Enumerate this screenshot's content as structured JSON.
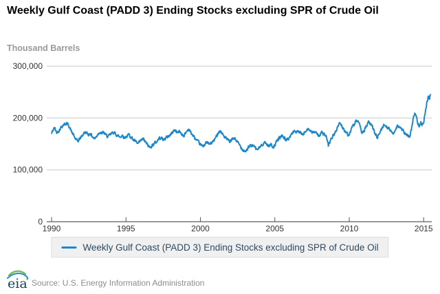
{
  "header": {
    "title": "Weekly Gulf Coast (PADD 3) Ending Stocks excluding SPR of Crude Oil",
    "units_label": "Thousand Barrels"
  },
  "legend": {
    "label": "Weekly Gulf Coast (PADD 3) Ending Stocks excluding SPR of Crude Oil"
  },
  "footer": {
    "logo_text": "eia",
    "source": "Source: U.S. Energy Information Administration"
  },
  "colors": {
    "line": "#1c87c9",
    "grid": "#dadada",
    "axis": "#999999",
    "tick": "#555555",
    "tick_label": "#333333",
    "title": "#000000",
    "units_label": "#999999",
    "legend_text": "#2a4a62",
    "legend_bg": "#f0f0f0",
    "legend_border": "#dddddd",
    "source_text": "#8c8c8c",
    "logo_green": "#7ab648",
    "logo_blue": "#2d95c9",
    "logo_navy": "#17415a"
  },
  "chart_data": {
    "type": "line",
    "title": "Weekly Gulf Coast (PADD 3) Ending Stocks excluding SPR of Crude Oil",
    "xlabel": "",
    "ylabel": "Thousand Barrels",
    "x_range": [
      1990,
      2015.6
    ],
    "y_range": [
      0,
      320000
    ],
    "x_ticks": [
      1990,
      1995,
      2000,
      2005,
      2010,
      2015
    ],
    "y_ticks": [
      0,
      100000,
      200000,
      300000
    ],
    "grid": "horizontal",
    "legend_position": "bottom",
    "frequency": "weekly",
    "weekly_noise": {
      "amplitude": 5000,
      "seed": 42,
      "persistence": 0.45
    },
    "series": [
      {
        "name": "Weekly Gulf Coast (PADD 3) Ending Stocks excluding SPR of Crude Oil",
        "points": [
          [
            1990.0,
            170000
          ],
          [
            1990.1,
            177000
          ],
          [
            1990.2,
            181000
          ],
          [
            1990.35,
            172000
          ],
          [
            1990.5,
            176000
          ],
          [
            1990.65,
            183000
          ],
          [
            1990.8,
            187000
          ],
          [
            1991.0,
            190000
          ],
          [
            1991.15,
            186000
          ],
          [
            1991.3,
            176000
          ],
          [
            1991.45,
            168000
          ],
          [
            1991.6,
            160000
          ],
          [
            1991.75,
            155000
          ],
          [
            1991.9,
            160000
          ],
          [
            1992.0,
            164000
          ],
          [
            1992.15,
            170000
          ],
          [
            1992.3,
            173000
          ],
          [
            1992.45,
            168000
          ],
          [
            1992.6,
            170000
          ],
          [
            1992.75,
            164000
          ],
          [
            1992.9,
            160000
          ],
          [
            1993.05,
            166000
          ],
          [
            1993.2,
            173000
          ],
          [
            1993.35,
            170000
          ],
          [
            1993.5,
            172000
          ],
          [
            1993.65,
            167000
          ],
          [
            1993.8,
            164000
          ],
          [
            1994.0,
            169000
          ],
          [
            1994.15,
            173000
          ],
          [
            1994.3,
            169000
          ],
          [
            1994.45,
            166000
          ],
          [
            1994.6,
            163000
          ],
          [
            1994.75,
            167000
          ],
          [
            1994.9,
            162000
          ],
          [
            1995.05,
            165000
          ],
          [
            1995.2,
            168000
          ],
          [
            1995.35,
            163000
          ],
          [
            1995.5,
            158000
          ],
          [
            1995.65,
            154000
          ],
          [
            1995.8,
            150000
          ],
          [
            1996.0,
            156000
          ],
          [
            1996.15,
            160000
          ],
          [
            1996.3,
            154000
          ],
          [
            1996.45,
            148000
          ],
          [
            1996.6,
            143000
          ],
          [
            1996.75,
            147000
          ],
          [
            1996.9,
            151000
          ],
          [
            1997.05,
            154000
          ],
          [
            1997.2,
            160000
          ],
          [
            1997.35,
            163000
          ],
          [
            1997.5,
            158000
          ],
          [
            1997.65,
            161000
          ],
          [
            1997.8,
            164000
          ],
          [
            1998.0,
            168000
          ],
          [
            1998.15,
            174000
          ],
          [
            1998.3,
            177000
          ],
          [
            1998.45,
            172000
          ],
          [
            1998.6,
            174000
          ],
          [
            1998.75,
            169000
          ],
          [
            1998.9,
            166000
          ],
          [
            1999.05,
            173000
          ],
          [
            1999.2,
            179000
          ],
          [
            1999.35,
            172000
          ],
          [
            1999.5,
            166000
          ],
          [
            1999.65,
            160000
          ],
          [
            1999.8,
            155000
          ],
          [
            2000.0,
            149000
          ],
          [
            2000.15,
            145000
          ],
          [
            2000.3,
            150000
          ],
          [
            2000.45,
            153000
          ],
          [
            2000.6,
            149000
          ],
          [
            2000.75,
            152000
          ],
          [
            2000.9,
            156000
          ],
          [
            2001.05,
            163000
          ],
          [
            2001.2,
            173000
          ],
          [
            2001.35,
            175000
          ],
          [
            2001.5,
            168000
          ],
          [
            2001.65,
            163000
          ],
          [
            2001.8,
            158000
          ],
          [
            2002.0,
            154000
          ],
          [
            2002.15,
            159000
          ],
          [
            2002.3,
            161000
          ],
          [
            2002.45,
            155000
          ],
          [
            2002.6,
            149000
          ],
          [
            2002.75,
            143000
          ],
          [
            2002.9,
            138000
          ],
          [
            2003.05,
            136000
          ],
          [
            2003.2,
            142000
          ],
          [
            2003.35,
            146000
          ],
          [
            2003.5,
            148000
          ],
          [
            2003.65,
            143000
          ],
          [
            2003.8,
            139000
          ],
          [
            2004.0,
            143000
          ],
          [
            2004.15,
            149000
          ],
          [
            2004.3,
            153000
          ],
          [
            2004.45,
            150000
          ],
          [
            2004.6,
            146000
          ],
          [
            2004.75,
            149000
          ],
          [
            2004.9,
            144000
          ],
          [
            2005.05,
            150000
          ],
          [
            2005.2,
            158000
          ],
          [
            2005.35,
            163000
          ],
          [
            2005.5,
            166000
          ],
          [
            2005.65,
            161000
          ],
          [
            2005.8,
            157000
          ],
          [
            2006.0,
            163000
          ],
          [
            2006.15,
            170000
          ],
          [
            2006.3,
            176000
          ],
          [
            2006.45,
            172000
          ],
          [
            2006.6,
            174000
          ],
          [
            2006.75,
            170000
          ],
          [
            2006.9,
            167000
          ],
          [
            2007.05,
            174000
          ],
          [
            2007.2,
            181000
          ],
          [
            2007.35,
            176000
          ],
          [
            2007.5,
            171000
          ],
          [
            2007.65,
            174000
          ],
          [
            2007.8,
            169000
          ],
          [
            2008.0,
            167000
          ],
          [
            2008.15,
            172000
          ],
          [
            2008.3,
            169000
          ],
          [
            2008.45,
            164000
          ],
          [
            2008.6,
            146000
          ],
          [
            2008.75,
            158000
          ],
          [
            2008.9,
            165000
          ],
          [
            2009.05,
            172000
          ],
          [
            2009.2,
            180000
          ],
          [
            2009.35,
            192000
          ],
          [
            2009.5,
            184000
          ],
          [
            2009.65,
            178000
          ],
          [
            2009.8,
            172000
          ],
          [
            2009.95,
            166000
          ],
          [
            2010.1,
            176000
          ],
          [
            2010.25,
            184000
          ],
          [
            2010.4,
            191000
          ],
          [
            2010.55,
            195000
          ],
          [
            2010.7,
            185000
          ],
          [
            2010.85,
            172000
          ],
          [
            2011.0,
            176000
          ],
          [
            2011.15,
            184000
          ],
          [
            2011.3,
            192000
          ],
          [
            2011.45,
            188000
          ],
          [
            2011.6,
            180000
          ],
          [
            2011.75,
            170000
          ],
          [
            2011.9,
            163000
          ],
          [
            2012.05,
            172000
          ],
          [
            2012.2,
            180000
          ],
          [
            2012.35,
            188000
          ],
          [
            2012.5,
            184000
          ],
          [
            2012.65,
            180000
          ],
          [
            2012.8,
            174000
          ],
          [
            2012.95,
            170000
          ],
          [
            2013.1,
            178000
          ],
          [
            2013.25,
            186000
          ],
          [
            2013.4,
            182000
          ],
          [
            2013.55,
            177000
          ],
          [
            2013.7,
            172000
          ],
          [
            2013.85,
            167000
          ],
          [
            2014.0,
            164000
          ],
          [
            2014.1,
            168000
          ],
          [
            2014.2,
            182000
          ],
          [
            2014.3,
            198000
          ],
          [
            2014.4,
            211000
          ],
          [
            2014.5,
            202000
          ],
          [
            2014.6,
            192000
          ],
          [
            2014.7,
            186000
          ],
          [
            2014.8,
            191000
          ],
          [
            2014.9,
            187000
          ],
          [
            2015.0,
            194000
          ],
          [
            2015.1,
            210000
          ],
          [
            2015.2,
            228000
          ],
          [
            2015.3,
            241000
          ],
          [
            2015.38,
            236000
          ],
          [
            2015.45,
            245000
          ]
        ]
      }
    ]
  }
}
